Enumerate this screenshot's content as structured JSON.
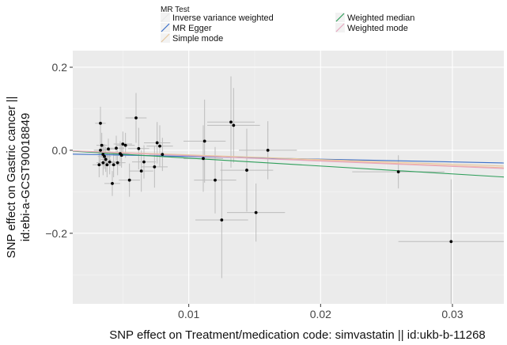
{
  "chart_data": {
    "type": "scatter",
    "title": "",
    "xlabel": "SNP effect on Treatment/medication code: simvastatin || id:ukb-b-11268",
    "ylabel_line1": "SNP effect on Gastric cancer ||",
    "ylabel_line2": "id:ebi-a-GCST90018849",
    "xlim": [
      0.0012,
      0.0339
    ],
    "ylim": [
      -0.37,
      0.24
    ],
    "x_ticks": [
      0.01,
      0.02,
      0.03
    ],
    "x_tick_labels": [
      "0.01",
      "0.02",
      "0.03"
    ],
    "y_ticks": [
      0.2,
      0.0,
      -0.2
    ],
    "y_tick_labels": [
      "0.2",
      "0.0",
      "−0.2"
    ],
    "grid": true,
    "legend": {
      "title": "MR Test",
      "position": "top",
      "entries": [
        {
          "name": "Inverse variance weighted",
          "color": "#e8e8e8"
        },
        {
          "name": "MR Egger",
          "color": "#3b6fc9"
        },
        {
          "name": "Simple mode",
          "color": "#e6c79e"
        },
        {
          "name": "Weighted median",
          "color": "#2e9e5a"
        },
        {
          "name": "Weighted mode",
          "color": "#e6a6bf"
        }
      ]
    },
    "lines": [
      {
        "name": "Inverse variance weighted",
        "color": "#f2b79c",
        "slope": -1.24,
        "intercept": 0.0
      },
      {
        "name": "MR Egger",
        "color": "#3b6fc9",
        "slope": -0.65,
        "intercept": -0.0085
      },
      {
        "name": "Simple mode",
        "color": "#e6c79e",
        "slope": -1.12,
        "intercept": 0.0
      },
      {
        "name": "Weighted median",
        "color": "#2e9e5a",
        "slope": -1.9,
        "intercept": 0.0
      },
      {
        "name": "Weighted mode",
        "color": "#e6a6bf",
        "slope": -1.3,
        "intercept": 0.0
      }
    ],
    "points": [
      {
        "x": 0.0032,
        "y": -0.035,
        "se_x": 0.0005,
        "se_y": 0.03
      },
      {
        "x": 0.0033,
        "y": 0.065,
        "se_x": 0.0004,
        "se_y": 0.04
      },
      {
        "x": 0.0033,
        "y": 0.0,
        "se_x": 0.0005,
        "se_y": 0.03
      },
      {
        "x": 0.0034,
        "y": 0.012,
        "se_x": 0.0004,
        "se_y": 0.03
      },
      {
        "x": 0.0035,
        "y": -0.03,
        "se_x": 0.0005,
        "se_y": 0.03
      },
      {
        "x": 0.0035,
        "y": -0.01,
        "se_x": 0.0004,
        "se_y": 0.025
      },
      {
        "x": 0.0036,
        "y": -0.015,
        "se_x": 0.0005,
        "se_y": 0.03
      },
      {
        "x": 0.0037,
        "y": -0.022,
        "se_x": 0.0004,
        "se_y": 0.03
      },
      {
        "x": 0.0038,
        "y": -0.035,
        "se_x": 0.0005,
        "se_y": 0.03
      },
      {
        "x": 0.0039,
        "y": 0.003,
        "se_x": 0.0006,
        "se_y": 0.025
      },
      {
        "x": 0.004,
        "y": -0.028,
        "se_x": 0.0005,
        "se_y": 0.03
      },
      {
        "x": 0.0042,
        "y": -0.08,
        "se_x": 0.0006,
        "se_y": 0.03
      },
      {
        "x": 0.0043,
        "y": -0.035,
        "se_x": 0.0005,
        "se_y": 0.03
      },
      {
        "x": 0.0045,
        "y": 0.005,
        "se_x": 0.0006,
        "se_y": 0.03
      },
      {
        "x": 0.0046,
        "y": -0.03,
        "se_x": 0.0006,
        "se_y": 0.03
      },
      {
        "x": 0.0048,
        "y": -0.008,
        "se_x": 0.0007,
        "se_y": 0.03
      },
      {
        "x": 0.0049,
        "y": -0.012,
        "se_x": 0.0006,
        "se_y": 0.03
      },
      {
        "x": 0.005,
        "y": 0.015,
        "se_x": 0.0007,
        "se_y": 0.03
      },
      {
        "x": 0.0052,
        "y": 0.012,
        "se_x": 0.0007,
        "se_y": 0.03
      },
      {
        "x": 0.0055,
        "y": -0.072,
        "se_x": 0.0008,
        "se_y": 0.04
      },
      {
        "x": 0.006,
        "y": 0.078,
        "se_x": 0.0008,
        "se_y": 0.06
      },
      {
        "x": 0.0062,
        "y": 0.004,
        "se_x": 0.0008,
        "se_y": 0.05
      },
      {
        "x": 0.0064,
        "y": -0.05,
        "se_x": 0.0009,
        "se_y": 0.05
      },
      {
        "x": 0.0066,
        "y": -0.028,
        "se_x": 0.0009,
        "se_y": 0.04
      },
      {
        "x": 0.0074,
        "y": -0.04,
        "se_x": 0.001,
        "se_y": 0.05
      },
      {
        "x": 0.0076,
        "y": 0.018,
        "se_x": 0.001,
        "se_y": 0.05
      },
      {
        "x": 0.0078,
        "y": 0.01,
        "se_x": 0.001,
        "se_y": 0.05
      },
      {
        "x": 0.008,
        "y": -0.01,
        "se_x": 0.001,
        "se_y": 0.04
      },
      {
        "x": 0.0111,
        "y": -0.02,
        "se_x": 0.0015,
        "se_y": 0.08
      },
      {
        "x": 0.0112,
        "y": 0.022,
        "se_x": 0.0016,
        "se_y": 0.1
      },
      {
        "x": 0.012,
        "y": -0.072,
        "se_x": 0.0016,
        "se_y": 0.08
      },
      {
        "x": 0.0125,
        "y": -0.168,
        "se_x": 0.002,
        "se_y": 0.14
      },
      {
        "x": 0.0132,
        "y": 0.068,
        "se_x": 0.0018,
        "se_y": 0.11
      },
      {
        "x": 0.0134,
        "y": 0.06,
        "se_x": 0.002,
        "se_y": 0.09
      },
      {
        "x": 0.0144,
        "y": -0.048,
        "se_x": 0.002,
        "se_y": 0.1
      },
      {
        "x": 0.0151,
        "y": -0.15,
        "se_x": 0.0022,
        "se_y": 0.07
      },
      {
        "x": 0.016,
        "y": 0.0,
        "se_x": 0.0022,
        "se_y": 0.07
      },
      {
        "x": 0.0259,
        "y": -0.052,
        "se_x": 0.0035,
        "se_y": 0.04
      },
      {
        "x": 0.0299,
        "y": -0.22,
        "se_x": 0.004,
        "se_y": 0.15
      }
    ]
  }
}
